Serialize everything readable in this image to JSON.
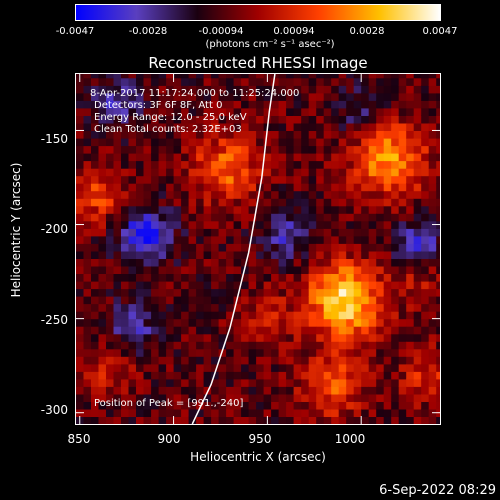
{
  "colorbar": {
    "ticks": [
      "-0.0047",
      "-0.0028",
      "-0.00094",
      "0.00094",
      "0.0028",
      "0.0047"
    ],
    "units": "(photons cm⁻² s⁻¹ asec⁻²)",
    "colors": [
      "#0000ff",
      "#5a3fbf",
      "#1a0010",
      "#a00000",
      "#ff4000",
      "#ffc000",
      "#ffffff"
    ]
  },
  "title": "Reconstructed RHESSI Image",
  "info": {
    "time": "8-Apr-2017 11:17:24.000 to 11:25:24.000",
    "detectors": "Detectors: 3F 6F 8F, Att 0",
    "energy": "Energy Range: 12.0 - 25.0 keV",
    "clean": "Clean     Total counts: 2.32E+03",
    "peak": "Position of Peak = [991.,-240]"
  },
  "chart_data": {
    "type": "heatmap",
    "title": "Reconstructed RHESSI Image",
    "xlabel": "Heliocentric X (arcsec)",
    "ylabel": "Heliocentric Y (arcsec)",
    "xlim": [
      848,
      1042
    ],
    "ylim": [
      -306,
      -120
    ],
    "xticks": [
      "850",
      "900",
      "950",
      "1000"
    ],
    "yticks": [
      "-150",
      "-200",
      "-250",
      "-300"
    ],
    "xtick_values": [
      850,
      900,
      950,
      1000
    ],
    "ytick_values": [
      -150,
      -200,
      -250,
      -300
    ],
    "limb_curve": [
      [
        910,
        -306
      ],
      [
        920,
        -285
      ],
      [
        930,
        -255
      ],
      [
        940,
        -215
      ],
      [
        947,
        -175
      ],
      [
        951,
        -140
      ],
      [
        954,
        -120
      ]
    ],
    "peak": [
      991,
      -240
    ],
    "sources": [
      {
        "x": 991,
        "y": -240,
        "intensity": 0.0047,
        "spread": 14
      },
      {
        "x": 1015,
        "y": -165,
        "intensity": 0.0035,
        "spread": 14
      },
      {
        "x": 928,
        "y": -170,
        "intensity": 0.0028,
        "spread": 13
      },
      {
        "x": 985,
        "y": -285,
        "intensity": 0.0025,
        "spread": 12
      },
      {
        "x": 860,
        "y": -185,
        "intensity": 0.0022,
        "spread": 10
      },
      {
        "x": 1035,
        "y": -280,
        "intensity": 0.0018,
        "spread": 10
      },
      {
        "x": 865,
        "y": -275,
        "intensity": 0.0015,
        "spread": 10
      },
      {
        "x": 950,
        "y": -250,
        "intensity": 0.0015,
        "spread": 10
      },
      {
        "x": 1030,
        "y": -230,
        "intensity": 0.0012,
        "spread": 9
      }
    ],
    "negatives": [
      {
        "x": 885,
        "y": -205,
        "intensity": -0.0035,
        "spread": 10
      },
      {
        "x": 870,
        "y": -135,
        "intensity": -0.0022,
        "spread": 9
      },
      {
        "x": 878,
        "y": -255,
        "intensity": -0.0022,
        "spread": 9
      },
      {
        "x": 960,
        "y": -205,
        "intensity": -0.002,
        "spread": 10
      },
      {
        "x": 1030,
        "y": -210,
        "intensity": -0.0025,
        "spread": 9
      },
      {
        "x": 1000,
        "y": -140,
        "intensity": -0.0015,
        "spread": 10
      }
    ]
  },
  "footer": "6-Sep-2022 08:29"
}
